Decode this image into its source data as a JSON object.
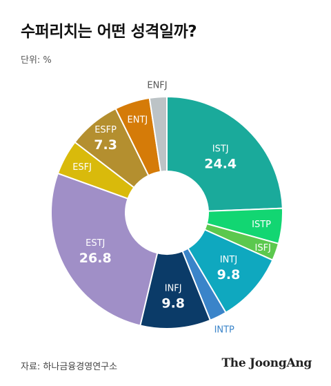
{
  "header": {
    "title": "수퍼리치는 어떤 성격일까?",
    "unit_label": "단위: %"
  },
  "footer": {
    "source": "자료: 하나금융경영연구소",
    "brand": "The JoongAng"
  },
  "chart_data": {
    "type": "pie",
    "title": "수퍼리치는 어떤 성격일까?",
    "unit": "%",
    "slices": [
      {
        "label": "ISTJ",
        "value": 24.4,
        "value_label": "24.4",
        "color": "#1aaa9b"
      },
      {
        "label": "ISTP",
        "value": 4.9,
        "value_label": "",
        "color": "#12d672"
      },
      {
        "label": "ISFJ",
        "value": 2.4,
        "value_label": "",
        "color": "#5cc84e"
      },
      {
        "label": "INTJ",
        "value": 9.8,
        "value_label": "9.8",
        "color": "#0fa8bf"
      },
      {
        "label": "INTP",
        "value": 2.4,
        "value_label": "",
        "color": "#3a84c9"
      },
      {
        "label": "INFJ",
        "value": 9.8,
        "value_label": "9.8",
        "color": "#0b3b68"
      },
      {
        "label": "ESTJ",
        "value": 26.8,
        "value_label": "26.8",
        "color": "#a08fc7"
      },
      {
        "label": "ESFJ",
        "value": 4.9,
        "value_label": "",
        "color": "#d9ba0b"
      },
      {
        "label": "ESFP",
        "value": 7.3,
        "value_label": "7.3",
        "color": "#b48f2f"
      },
      {
        "label": "ENTJ",
        "value": 4.9,
        "value_label": "",
        "color": "#d57b08"
      },
      {
        "label": "ENFJ",
        "value": 2.4,
        "value_label": "",
        "color": "#bcc3c6"
      }
    ]
  }
}
